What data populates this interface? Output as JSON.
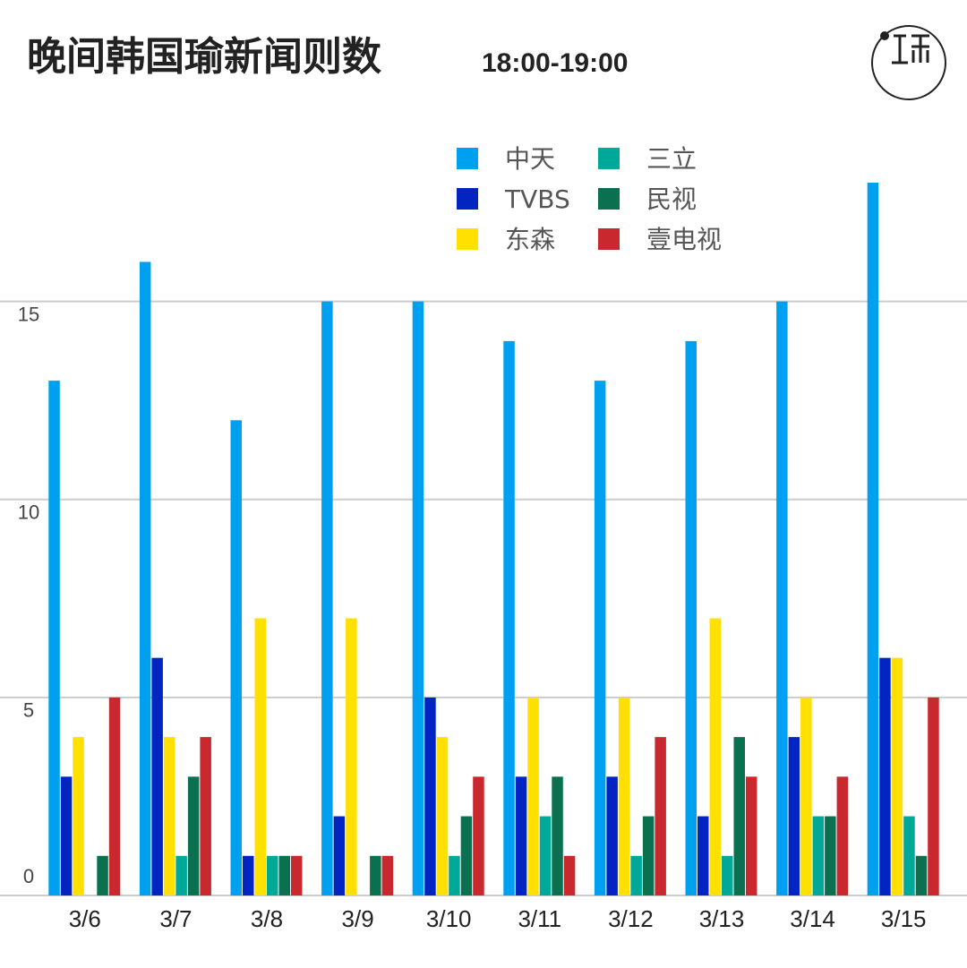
{
  "chart_data": {
    "type": "bar",
    "title": "晚间韩国瑜新闻则数",
    "subtitle": "18:00-19:00",
    "categories": [
      "3/6",
      "3/7",
      "3/8",
      "3/9",
      "3/10",
      "3/11",
      "3/12",
      "3/13",
      "3/14",
      "3/15"
    ],
    "series": [
      {
        "name": "中天",
        "color": "#00a0f0",
        "values": [
          13,
          16,
          12,
          15,
          15,
          14,
          13,
          14,
          15,
          18
        ]
      },
      {
        "name": "TVBS",
        "color": "#0224c0",
        "values": [
          3,
          6,
          1,
          2,
          5,
          3,
          3,
          2,
          4,
          6
        ]
      },
      {
        "name": "东森",
        "color": "#ffe000",
        "values": [
          4,
          4,
          7,
          7,
          4,
          5,
          5,
          7,
          5,
          6
        ]
      },
      {
        "name": "三立",
        "color": "#00a898",
        "values": [
          0,
          1,
          1,
          0,
          1,
          2,
          1,
          1,
          2,
          2
        ]
      },
      {
        "name": "民视",
        "color": "#0a7050",
        "values": [
          1,
          3,
          1,
          1,
          2,
          3,
          2,
          4,
          2,
          1
        ]
      },
      {
        "name": "壹电视",
        "color": "#c8282e",
        "values": [
          5,
          4,
          1,
          1,
          3,
          1,
          4,
          3,
          3,
          5
        ]
      }
    ],
    "ylim": [
      0,
      18
    ],
    "yticks": [
      0,
      5,
      10,
      15
    ],
    "grid": true
  }
}
